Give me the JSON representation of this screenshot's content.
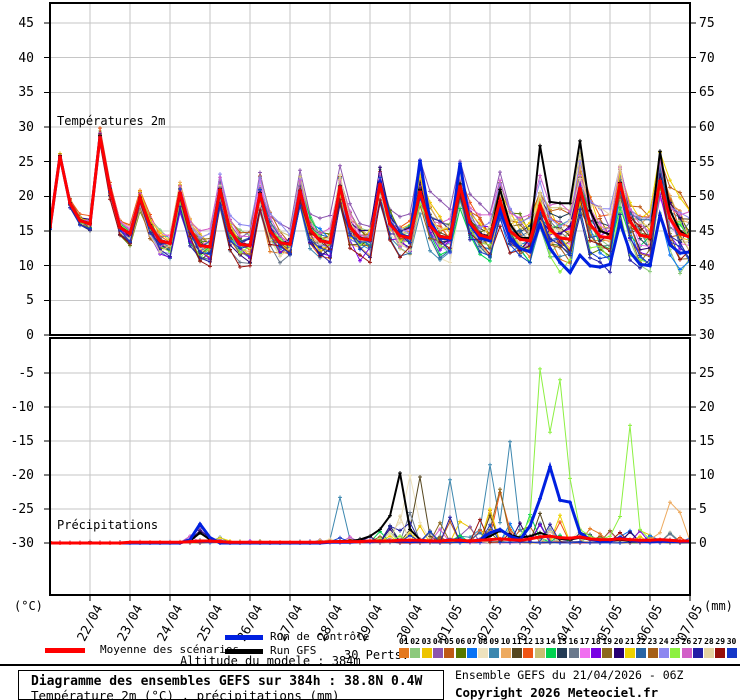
{
  "panel_labels": {
    "temperature": "Températures 2m",
    "precipitation": "Précipitations"
  },
  "axes": {
    "left_unit": "(°C)",
    "right_unit": "(mm)",
    "temp_left_ticks": [
      45,
      40,
      35,
      30,
      25,
      20,
      15,
      10,
      5,
      0
    ],
    "precip_left_ticks": [
      -5,
      -10,
      -15,
      -20,
      -25,
      -30
    ],
    "temp_right_ticks": [
      75,
      70,
      65,
      60,
      55,
      50,
      45,
      40,
      35,
      30
    ],
    "precip_right_ticks": [
      25,
      20,
      15,
      10,
      5,
      0
    ],
    "dates": [
      "22/04",
      "23/04",
      "24/04",
      "25/04",
      "26/04",
      "27/04",
      "28/04",
      "29/04",
      "30/04",
      "01/05",
      "02/05",
      "03/05",
      "04/05",
      "05/05",
      "06/05",
      "07/05"
    ]
  },
  "legend": {
    "mean_label": "Moyenne des scénarios",
    "mean_color": "#FF0000",
    "control_label": "Run de contrôle",
    "control_color": "#0020E0",
    "gfs_label": "Run GFS",
    "gfs_color": "#000000",
    "perts_label": "30 Perts.",
    "pert_numbers": [
      "01",
      "02",
      "03",
      "04",
      "05",
      "06",
      "07",
      "08",
      "09",
      "10",
      "11",
      "12",
      "13",
      "14",
      "15",
      "16",
      "17",
      "18",
      "19",
      "20",
      "21",
      "22",
      "23",
      "24",
      "25",
      "26",
      "27",
      "28",
      "29",
      "30"
    ],
    "pert_colors": [
      "#E4791F",
      "#8CC97C",
      "#EDC400",
      "#8C55AE",
      "#BE5A15",
      "#567800",
      "#0873F5",
      "#EDE2BE",
      "#3C87AF",
      "#EDAA5F",
      "#55461E",
      "#F05514",
      "#C8BE73",
      "#00D250",
      "#233C55",
      "#69788C",
      "#F06EF0",
      "#7800E4",
      "#8C691E",
      "#280073",
      "#EDD200",
      "#2864A5",
      "#A55F19",
      "#8C87F0",
      "#8CF041",
      "#D25FC8",
      "#231EA5",
      "#E4D2A0",
      "#960F0A",
      "#1437C8"
    ]
  },
  "altitude_note": "Altitude du modele : 384m",
  "footer": {
    "title": "Diagramme des ensembles GEFS sur 384h : 38.8N 0.4W",
    "subtitle": "Température 2m (°C) , précipitations (mm)",
    "run_info": "Ensemble GEFS du 21/04/2026 - 06Z",
    "copyright": "Copyright 2026 Meteociel.fr"
  },
  "chart_data": {
    "type": "line",
    "title": "Diagramme des ensembles GEFS sur 384h : 38.8N 0.4W",
    "start": "21/04 06Z",
    "hours": 384,
    "time_step_hours": 6,
    "grid": true,
    "temperature": {
      "ylabel_left": "°C",
      "ylim_left": [
        0,
        45
      ],
      "ylim_right": [
        30,
        75
      ],
      "mean": [
        15.5,
        25.8,
        19.0,
        16.5,
        16.0,
        28.6,
        21.0,
        15.5,
        14.6,
        19.8,
        15.8,
        13.6,
        13.2,
        20.6,
        15.3,
        12.9,
        12.7,
        21.0,
        15.0,
        13.1,
        12.9,
        20.4,
        15.0,
        13.3,
        13.1,
        20.8,
        15.2,
        13.6,
        13.3,
        21.4,
        15.6,
        13.9,
        13.7,
        21.8,
        16.0,
        14.3,
        14.0,
        20.7,
        15.8,
        14.2,
        14.0,
        21.5,
        16.2,
        14.4,
        14.0,
        19.4,
        15.0,
        13.8,
        13.6,
        18.7,
        15.2,
        14.0,
        13.8,
        21.2,
        16.0,
        14.2,
        14.0,
        21.9,
        16.4,
        14.4,
        14.1,
        22.3,
        16.8,
        14.6,
        14.1
      ],
      "control": [
        15.5,
        25.8,
        19.0,
        16.5,
        16.0,
        28.6,
        21.0,
        15.5,
        14.6,
        19.8,
        15.8,
        13.6,
        13.2,
        20.6,
        15.3,
        12.9,
        12.7,
        21.0,
        15.0,
        13.1,
        12.9,
        20.4,
        15.0,
        13.3,
        13.1,
        20.8,
        15.2,
        13.6,
        13.3,
        21.4,
        15.6,
        13.9,
        13.7,
        22.2,
        16.2,
        14.4,
        14.1,
        25.2,
        16.5,
        14.0,
        13.8,
        24.8,
        16.0,
        14.0,
        13.6,
        18.0,
        14.0,
        12.5,
        12.0,
        16.0,
        12.5,
        10.5,
        9.0,
        11.5,
        10.0,
        9.8,
        10.2,
        16.2,
        12.0,
        10.2,
        10.0,
        17.3,
        13.0,
        11.8,
        12.0
      ],
      "gfs": [
        15.5,
        25.9,
        19.1,
        16.6,
        16.1,
        28.8,
        21.1,
        15.6,
        14.7,
        19.9,
        15.9,
        13.7,
        13.3,
        20.5,
        15.4,
        13.0,
        12.8,
        21.1,
        15.1,
        13.2,
        13.0,
        20.5,
        15.1,
        13.4,
        13.2,
        20.9,
        15.3,
        13.7,
        13.4,
        21.5,
        15.7,
        14.0,
        13.8,
        22.0,
        16.1,
        14.4,
        14.1,
        21.0,
        15.9,
        14.3,
        14.1,
        21.8,
        16.3,
        14.5,
        14.1,
        21.0,
        16.0,
        14.0,
        14.0,
        27.3,
        19.2,
        19.0,
        19.0,
        28.0,
        18.0,
        15.0,
        14.5,
        22.0,
        16.5,
        14.5,
        14.0,
        26.5,
        18.0,
        15.0,
        14.0
      ],
      "spread": [
        0.3,
        0.4,
        0.6,
        0.8,
        0.9,
        0.8,
        1.0,
        1.2,
        1.4,
        1.5,
        1.6,
        1.8,
        1.8,
        2.0,
        2.0,
        2.2,
        2.2,
        2.4,
        2.3,
        2.4,
        2.4,
        2.5,
        2.4,
        2.5,
        2.5,
        2.6,
        2.5,
        2.6,
        2.6,
        2.7,
        2.7,
        2.8,
        2.8,
        3.0,
        2.9,
        3.0,
        3.0,
        3.2,
        3.1,
        3.2,
        3.2,
        3.4,
        3.3,
        3.4,
        3.4,
        3.6,
        3.5,
        3.6,
        3.7,
        3.8,
        3.8,
        3.9,
        4.0,
        4.0,
        4.0,
        4.1,
        4.1,
        4.2,
        4.2,
        4.3,
        4.3,
        4.4,
        4.4,
        4.5,
        4.5
      ]
    },
    "precipitation": {
      "ylabel_right": "mm",
      "ylim": [
        0,
        30
      ],
      "mean": [
        0,
        0,
        0,
        0,
        0,
        0,
        0,
        0,
        0.1,
        0.1,
        0.1,
        0.1,
        0.1,
        0.1,
        0.2,
        0.3,
        0.3,
        0.2,
        0.1,
        0.1,
        0.1,
        0.1,
        0.1,
        0.1,
        0.1,
        0.1,
        0.1,
        0.1,
        0.2,
        0.2,
        0.2,
        0.2,
        0.3,
        0.3,
        0.3,
        0.4,
        0.4,
        0.4,
        0.3,
        0.3,
        0.4,
        0.4,
        0.3,
        0.4,
        0.5,
        0.6,
        0.5,
        0.4,
        0.6,
        0.9,
        1.0,
        0.8,
        0.7,
        0.9,
        0.6,
        0.5,
        0.5,
        0.6,
        0.5,
        0.4,
        0.4,
        0.5,
        0.4,
        0.3,
        0.3
      ],
      "control": [
        0,
        0,
        0,
        0,
        0,
        0,
        0,
        0,
        0,
        0,
        0,
        0,
        0,
        0,
        0.5,
        2.8,
        0.8,
        0,
        0,
        0,
        0,
        0,
        0,
        0,
        0,
        0,
        0,
        0,
        0.1,
        0.1,
        0.1,
        0.2,
        0.2,
        0.3,
        0.3,
        0.3,
        0.2,
        0.3,
        0.2,
        0.2,
        0.5,
        0.3,
        0.2,
        0.5,
        1.5,
        2.0,
        1.0,
        0.5,
        2.5,
        6.5,
        11.2,
        6.3,
        6.0,
        1.5,
        0.5,
        0.3,
        0.3,
        0.8,
        0.4,
        0.3,
        0.2,
        0.3,
        0.2,
        0.2,
        0.2
      ],
      "gfs": [
        0,
        0,
        0,
        0,
        0,
        0,
        0,
        0,
        0,
        0,
        0,
        0,
        0,
        0,
        0.3,
        1.5,
        0.5,
        0.1,
        0,
        0,
        0,
        0,
        0,
        0,
        0,
        0,
        0,
        0.1,
        0.2,
        0.3,
        0.3,
        0.5,
        1.0,
        2.0,
        4.0,
        10.3,
        2.0,
        0.5,
        0.3,
        0.3,
        0.5,
        0.5,
        0.3,
        0.5,
        1.0,
        1.8,
        1.2,
        0.8,
        1.0,
        1.5,
        1.0,
        0.6,
        0.5,
        0.8,
        0.5,
        0.3,
        0.3,
        0.5,
        0.3,
        0.2,
        0.2,
        0.3,
        0.2,
        0.1,
        0.1
      ],
      "envelope": [
        0.2,
        0.2,
        0.2,
        0.2,
        0.2,
        0.2,
        0.2,
        0.2,
        0.2,
        0.2,
        0.2,
        0.2,
        0.2,
        0.2,
        1.2,
        1.5,
        1.5,
        1.0,
        0.6,
        0.3,
        0.3,
        0.3,
        0.3,
        0.3,
        0.3,
        0.3,
        0.3,
        0.5,
        0.8,
        1.0,
        1.0,
        1.2,
        1.5,
        2.0,
        3.0,
        4.0,
        5.0,
        5.0,
        4.0,
        3.5,
        4.0,
        3.5,
        3.0,
        4.0,
        5.0,
        5.5,
        5.0,
        4.5,
        5.0,
        5.5,
        5.0,
        4.5,
        4.0,
        3.5,
        3.0,
        2.5,
        2.5,
        3.0,
        2.5,
        2.0,
        2.0,
        2.5,
        2.0,
        1.0,
        0.8
      ],
      "pert_overrides": {
        "25": [
          [
            47,
            1.0
          ],
          [
            48,
            3.5
          ],
          [
            49,
            25.6
          ],
          [
            50,
            16.3
          ],
          [
            51,
            24.0
          ],
          [
            52,
            9.5
          ],
          [
            53,
            2.0
          ],
          [
            54,
            1.0
          ],
          [
            55,
            0.5
          ],
          [
            56,
            1.0
          ],
          [
            57,
            3.9
          ],
          [
            58,
            17.3
          ],
          [
            59,
            2.0
          ],
          [
            60,
            0.5
          ]
        ],
        "9": [
          [
            28,
            0.5
          ],
          [
            29,
            6.7
          ],
          [
            30,
            0.5
          ],
          [
            39,
            1.0
          ],
          [
            40,
            9.3
          ],
          [
            41,
            1.0
          ],
          [
            43,
            2.0
          ],
          [
            44,
            11.5
          ],
          [
            45,
            3.0
          ],
          [
            46,
            14.9
          ],
          [
            47,
            2.0
          ]
        ],
        "10": [
          [
            60,
            0.5
          ],
          [
            61,
            1.5
          ],
          [
            62,
            6.0
          ],
          [
            63,
            4.5
          ],
          [
            64,
            0.3
          ]
        ],
        "11": [
          [
            36,
            2.0
          ],
          [
            37,
            9.7
          ],
          [
            38,
            1.0
          ]
        ],
        "8": [
          [
            34,
            1.5
          ],
          [
            35,
            3.0
          ],
          [
            36,
            9.9
          ],
          [
            37,
            3.0
          ],
          [
            38,
            0.5
          ]
        ],
        "19": [
          [
            43,
            0.5
          ],
          [
            44,
            2.0
          ],
          [
            45,
            7.9
          ],
          [
            46,
            1.0
          ]
        ],
        "12": [
          [
            44,
            1.0
          ],
          [
            45,
            7.4
          ],
          [
            46,
            2.0
          ]
        ],
        "20": [
          [
            14,
            0.5
          ],
          [
            15,
            1.8
          ],
          [
            16,
            0.8
          ]
        ],
        "4": [
          [
            14,
            1.0
          ],
          [
            15,
            2.1
          ],
          [
            16,
            0.5
          ]
        ]
      }
    }
  }
}
